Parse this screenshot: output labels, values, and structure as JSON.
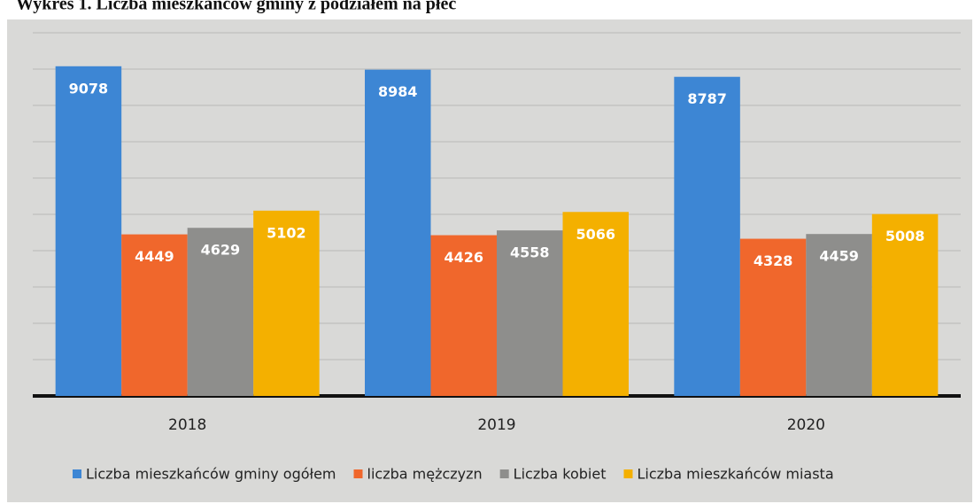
{
  "chart_data": {
    "type": "bar",
    "title": "Wykres 1. Liczba mieszkańców gminy z podziałem na płeć",
    "categories": [
      "2018",
      "2019",
      "2020"
    ],
    "series": [
      {
        "name": "Liczba mieszkańców gminy ogółem",
        "color": "#3d86d4",
        "values": [
          9078,
          8984,
          8787
        ]
      },
      {
        "name": "liczba mężczyzn",
        "color": "#f0672c",
        "values": [
          4449,
          4426,
          4328
        ]
      },
      {
        "name": "Liczba kobiet",
        "color": "#8e8e8c",
        "values": [
          4629,
          4558,
          4459
        ]
      },
      {
        "name": "Liczba mieszkańców miasta",
        "color": "#f4b000",
        "values": [
          5102,
          5066,
          5008
        ]
      }
    ],
    "ylim": [
      0,
      10000
    ],
    "yticks": [
      0,
      1000,
      2000,
      3000,
      4000,
      5000,
      6000,
      7000,
      8000,
      9000,
      10000
    ],
    "grid": true,
    "legend": "bottom"
  }
}
